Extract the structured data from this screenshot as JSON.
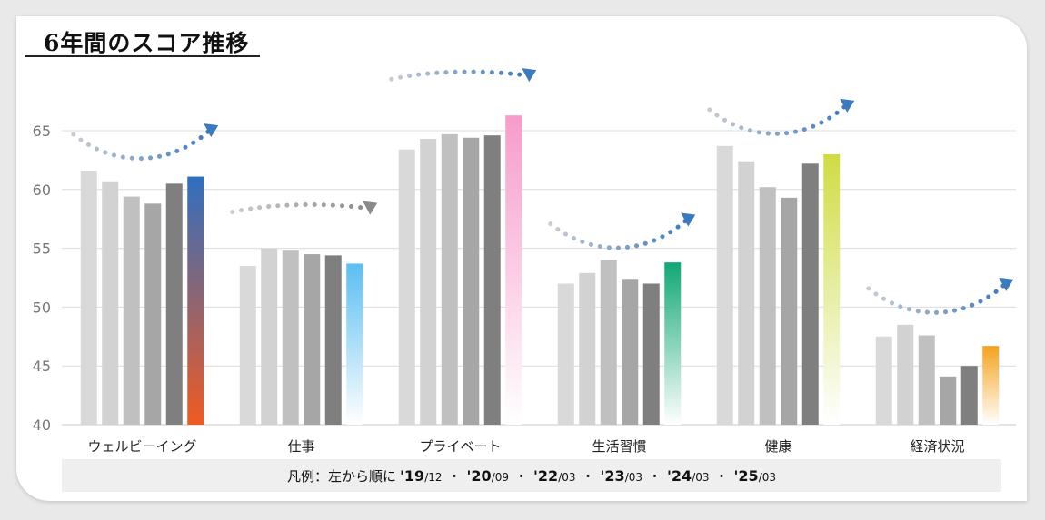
{
  "title": "6年間のスコア推移",
  "chart_data": {
    "type": "bar",
    "title": "6年間のスコア推移",
    "categories": [
      "ウェルビーイング",
      "仕事",
      "プライベート",
      "生活習慣",
      "健康",
      "経済状況"
    ],
    "series": [
      {
        "name": "'19/12",
        "values": [
          61.6,
          53.5,
          63.4,
          52.0,
          63.7,
          47.5
        ]
      },
      {
        "name": "'20/09",
        "values": [
          60.7,
          55.0,
          64.3,
          52.9,
          62.4,
          48.5
        ]
      },
      {
        "name": "'22/03",
        "values": [
          59.4,
          54.8,
          64.7,
          54.0,
          60.2,
          47.6
        ]
      },
      {
        "name": "'23/03",
        "values": [
          58.8,
          54.5,
          64.4,
          52.4,
          59.3,
          44.1
        ]
      },
      {
        "name": "'24/03",
        "values": [
          60.5,
          54.4,
          64.6,
          52.0,
          62.2,
          45.0
        ]
      },
      {
        "name": "'25/03",
        "values": [
          61.1,
          53.7,
          66.3,
          53.8,
          63.0,
          46.7
        ]
      }
    ],
    "ylim": [
      40,
      68
    ],
    "yticks": [
      40,
      45,
      50,
      55,
      60,
      65
    ],
    "grid": true,
    "bar_colors": [
      "#d9d9d9",
      "#d2d2d2",
      "#c0c0c0",
      "#a6a6a6",
      "#7f7f7f"
    ],
    "highlight_colors": [
      {
        "top": "#2f6fc0",
        "bottom": "#f05a22"
      },
      {
        "top": "#5bbef2",
        "bottom": "#ffffff"
      },
      {
        "top": "#f79bcb",
        "bottom": "#ffffff"
      },
      {
        "top": "#10a875",
        "bottom": "#ffffff"
      },
      {
        "top": "#cfdc44",
        "bottom": "#ffffff"
      },
      {
        "top": "#f5a21e",
        "bottom": "#ffffff"
      }
    ],
    "trend_arrow_colors": [
      "#3a7abf",
      "#8a8a8a",
      "#3a7abf",
      "#3a7abf",
      "#3a7abf",
      "#3a7abf"
    ]
  },
  "legend": {
    "prefix": "凡例：左から順に",
    "items": [
      {
        "year": "'19",
        "month": "/12"
      },
      {
        "year": "'20",
        "month": "/09"
      },
      {
        "year": "'22",
        "month": "/03"
      },
      {
        "year": "'23",
        "month": "/03"
      },
      {
        "year": "'24",
        "month": "/03"
      },
      {
        "year": "'25",
        "month": "/03"
      }
    ],
    "separator": "・"
  }
}
